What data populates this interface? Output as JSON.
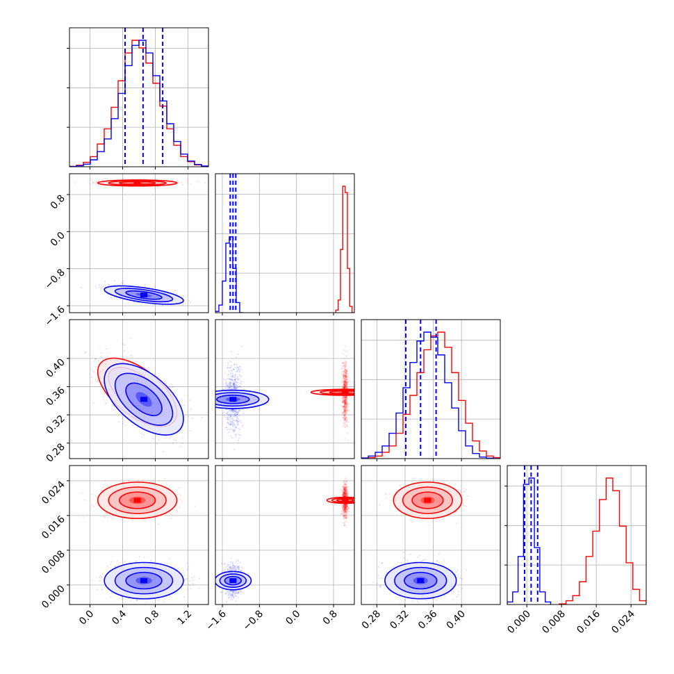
{
  "chart_data": {
    "type": "corner",
    "variables": [
      {
        "range": [
          -0.25,
          1.45
        ],
        "ticks": [
          0.0,
          0.4,
          0.8,
          1.2
        ],
        "tick_labels": [
          "0.0",
          "0.4",
          "0.8",
          "1.2"
        ]
      },
      {
        "range": [
          -1.75,
          1.25
        ],
        "ticks": [
          -1.6,
          -0.8,
          0.0,
          0.8
        ],
        "tick_labels": [
          "−1.6",
          "−0.8",
          "0.0",
          "0.8"
        ]
      },
      {
        "range": [
          0.258,
          0.455
        ],
        "ticks": [
          0.28,
          0.32,
          0.36,
          0.4
        ],
        "tick_labels": [
          "0.28",
          "0.32",
          "0.36",
          "0.40"
        ]
      },
      {
        "range": [
          -0.0045,
          0.0275
        ],
        "ticks": [
          0.0,
          0.008,
          0.016,
          0.024
        ],
        "tick_labels": [
          "0.000",
          "0.008",
          "0.016",
          "0.024"
        ]
      }
    ],
    "quantile_lines_color": "#0000ff",
    "quantiles": [
      [
        0.43,
        0.65,
        0.89
      ],
      [
        -1.43,
        -1.37,
        -1.31
      ],
      [
        0.321,
        0.342,
        0.364
      ],
      [
        -0.0005,
        0.001,
        0.0025
      ]
    ],
    "series": [
      {
        "color": "#ff0000",
        "means": [
          0.58,
          1.05,
          0.352,
          0.0195
        ],
        "stds": [
          0.22,
          0.03,
          0.022,
          0.0019
        ],
        "correlations": [
          [
            0,
            2,
            -0.6
          ]
        ],
        "histograms": [
          {
            "edges": [
              -0.25,
              1.45
            ],
            "counts": [
              0.003,
              0.012,
              0.035,
              0.08,
              0.18,
              0.3,
              0.47,
              0.68,
              0.9,
              1.0,
              0.94,
              0.82,
              0.66,
              0.48,
              0.3,
              0.17,
              0.08,
              0.04,
              0.015,
              0.005
            ]
          },
          {
            "edges": [
              0.85,
              1.25
            ],
            "counts": [
              0.02,
              0.1,
              0.5,
              1.0,
              0.95,
              0.35,
              0.05,
              0.0
            ]
          },
          {
            "edges": [
              0.258,
              0.455
            ],
            "counts": [
              0.002,
              0.008,
              0.02,
              0.05,
              0.1,
              0.2,
              0.35,
              0.5,
              0.68,
              0.86,
              0.97,
              1.0,
              0.88,
              0.68,
              0.46,
              0.28,
              0.14,
              0.06,
              0.02,
              0.008
            ]
          },
          {
            "edges": [
              0.0075,
              0.0275
            ],
            "counts": [
              0.005,
              0.03,
              0.07,
              0.18,
              0.38,
              0.58,
              0.83,
              1.0,
              0.9,
              0.62,
              0.33,
              0.12,
              0.03
            ]
          }
        ]
      },
      {
        "color": "#0000ff",
        "means": [
          0.66,
          -1.37,
          0.342,
          0.001
        ],
        "stds": [
          0.22,
          0.09,
          0.023,
          0.0019
        ],
        "correlations": [
          [
            0,
            1,
            -0.6
          ],
          [
            0,
            2,
            -0.55
          ]
        ],
        "histograms": [
          {
            "edges": [
              -0.25,
              1.45
            ],
            "counts": [
              0.002,
              0.008,
              0.02,
              0.055,
              0.12,
              0.22,
              0.38,
              0.58,
              0.8,
              0.96,
              1.0,
              0.9,
              0.72,
              0.52,
              0.34,
              0.2,
              0.1,
              0.045,
              0.018,
              0.006
            ]
          },
          {
            "edges": [
              -1.75,
              -1.15
            ],
            "counts": [
              0.01,
              0.06,
              0.25,
              0.55,
              0.6,
              0.35,
              0.08,
              0.0
            ]
          },
          {
            "edges": [
              0.258,
              0.455
            ],
            "counts": [
              0.005,
              0.02,
              0.05,
              0.1,
              0.2,
              0.36,
              0.56,
              0.76,
              0.93,
              1.0,
              0.96,
              0.82,
              0.6,
              0.4,
              0.22,
              0.1,
              0.04,
              0.012,
              0.004,
              0.0
            ]
          },
          {
            "edges": [
              -0.0045,
              0.0055
            ],
            "counts": [
              0.02,
              0.1,
              0.38,
              0.95,
              1.0,
              0.45,
              0.1,
              0.02
            ]
          }
        ]
      }
    ],
    "grid": true,
    "legend": "none"
  }
}
